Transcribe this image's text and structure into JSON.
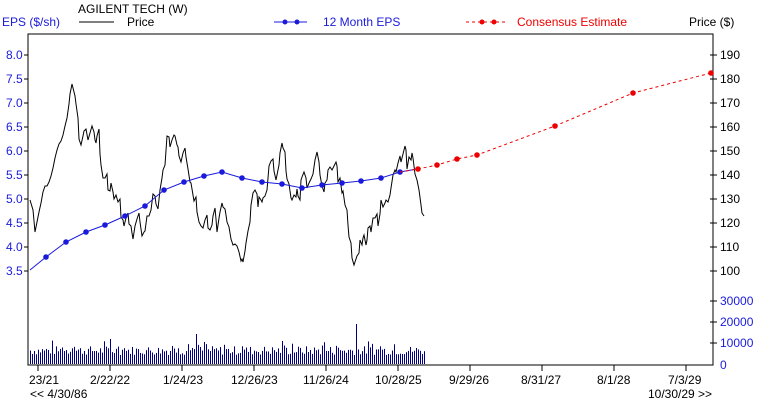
{
  "header": {
    "company": "AGILENT TECH (W)",
    "left_axis_title": "EPS ($/sh)",
    "right_axis_title": "Price ($)",
    "legend": [
      {
        "label": "Price",
        "style": "solid",
        "color": "#000000"
      },
      {
        "label": "12 Month EPS",
        "style": "solid-dots",
        "color": "#1a1adc"
      },
      {
        "label": "Consensus Estimate",
        "style": "dashed-dots",
        "color": "#ee0000"
      }
    ]
  },
  "footer": {
    "start_label": "<< 4/30/86",
    "end_label": "10/30/29 >>"
  },
  "chart_data": {
    "type": "line",
    "title": "AGILENT TECH (W)",
    "xlabel": "",
    "x_tick_labels": [
      "23/21",
      "2/22/22",
      "1/24/23",
      "12/26/23",
      "11/26/24",
      "10/28/25",
      "9/29/26",
      "8/31/27",
      "8/1/28",
      "7/3/29"
    ],
    "left_axis": {
      "label": "EPS ($/sh)",
      "ticks": [
        "8.0",
        "7.5",
        "7.0",
        "6.5",
        "6.0",
        "5.5",
        "5.0",
        "4.5",
        "4.0",
        "3.5"
      ],
      "range": [
        3.5,
        8.0
      ]
    },
    "right_axis": {
      "label": "Price ($)",
      "ticks": [
        "190",
        "180",
        "170",
        "160",
        "150",
        "140",
        "130",
        "120",
        "110",
        "100"
      ],
      "range": [
        100,
        190
      ]
    },
    "volume_axis": {
      "ticks": [
        "30000",
        "20000",
        "10000",
        "0"
      ],
      "range": [
        0,
        30000
      ]
    },
    "series": [
      {
        "name": "12 Month EPS",
        "color": "#1a1adc",
        "x_labels": [
          "~Mar 21",
          "~Jun 21",
          "~Sep 21",
          "~Dec 21",
          "~Mar 22",
          "~Jun 22",
          "~Sep 22",
          "~Dec 22",
          "~Mar 23",
          "~Jun 23",
          "~Sep 23",
          "~Dec 23",
          "~Mar 24",
          "~Jun 24",
          "~Sep 24",
          "~Dec 24",
          "~Mar 25",
          "~Jun 25",
          "~Sep 25"
        ],
        "values": [
          3.5,
          3.77,
          4.1,
          4.31,
          4.46,
          4.58,
          4.76,
          5.2,
          5.38,
          5.5,
          5.56,
          5.41,
          5.37,
          5.33,
          5.28,
          5.32,
          5.36,
          5.41,
          5.49
        ]
      },
      {
        "name": "Consensus Estimate",
        "color": "#ee0000",
        "x_labels": [
          "~Oct 25",
          "~Jan 26",
          "~Apr 26",
          "~Jul 26",
          "~Oct 27",
          "~Oct 28",
          "~Oct 29"
        ],
        "values": [
          5.6,
          5.66,
          5.74,
          5.79,
          6.23,
          6.72,
          7.18
        ]
      },
      {
        "name": "Price",
        "color": "#000000",
        "unit": "$",
        "approx_range": [
          100,
          178
        ],
        "notes": "weekly price, peak ~177 early 2021, lows ~102 late 2023 and late 2024, last ~122"
      }
    ],
    "volume": {
      "color": "#000080",
      "approx_range": [
        5000,
        21000
      ],
      "typical": 8000
    },
    "grid": false,
    "legend_position": "top"
  }
}
